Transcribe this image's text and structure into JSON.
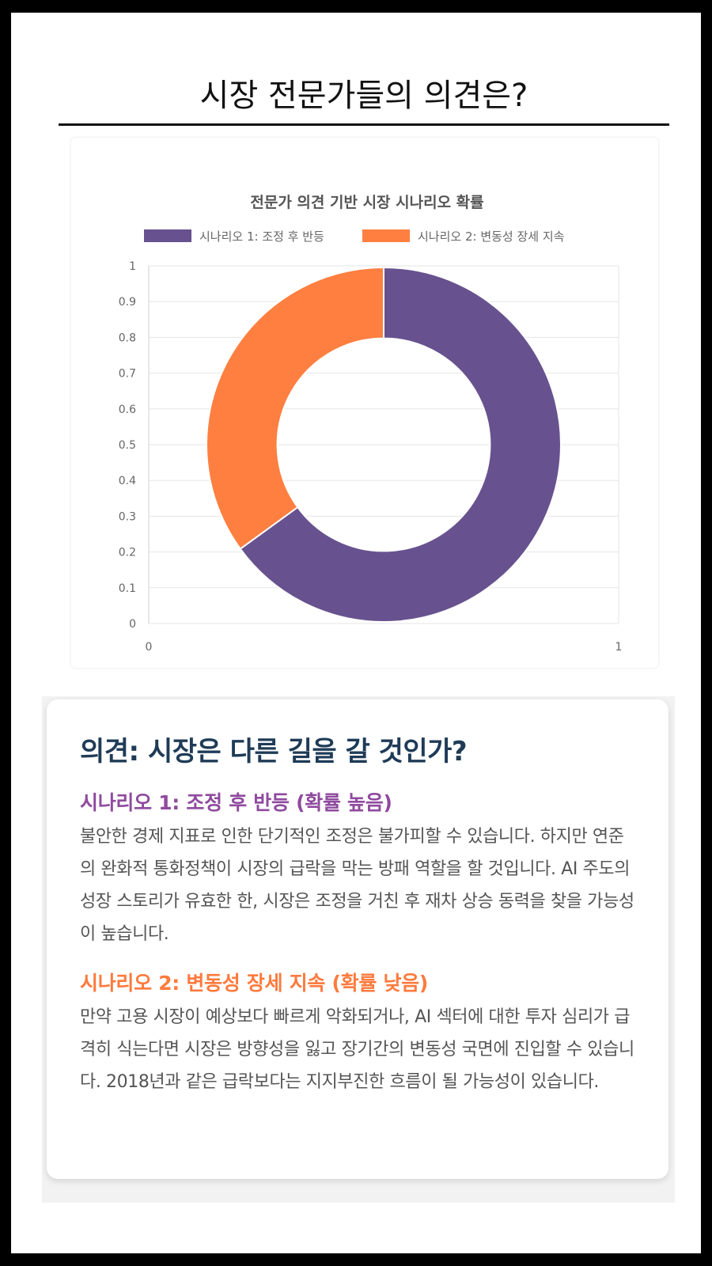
{
  "page": {
    "title": "시장 전문가들의 의견은?"
  },
  "chart_data": {
    "type": "pie",
    "title": "전문가 의견 기반 시장 시나리오 확률",
    "legend_position": "top",
    "series": [
      {
        "name": "시나리오 1: 조정 후 반등",
        "value": 65,
        "color": "#67528f"
      },
      {
        "name": "시나리오 2: 변동성 장세 지속",
        "value": 35,
        "color": "#ff7f40"
      }
    ],
    "donut_inner_ratio": 0.6,
    "x_ticks": [
      "0",
      "1"
    ],
    "y_ticks": [
      "0",
      "0.1",
      "0.2",
      "0.3",
      "0.4",
      "0.5",
      "0.6",
      "0.7",
      "0.8",
      "0.9",
      "1"
    ],
    "xlim": [
      0,
      1
    ],
    "ylim": [
      0,
      1
    ],
    "grid": true
  },
  "opinion": {
    "heading": "의견: 시장은 다른 길을 갈 것인가?",
    "scenario1": {
      "title": "시나리오 1: 조정 후 반등 (확률 높음)",
      "color": "#8f4a9e",
      "body": "불안한 경제 지표로 인한 단기적인 조정은 불가피할 수 있습니다. 하지만 연준의 완화적 통화정책이 시장의 급락을 막는 방패 역할을 할 것입니다. AI 주도의 성장 스토리가 유효한 한, 시장은 조정을 거친 후 재차 상승 동력을 찾을 가능성이 높습니다."
    },
    "scenario2": {
      "title": "시나리오 2: 변동성 장세 지속 (확률 낮음)",
      "color": "#ff7a3d",
      "body": "만약 고용 시장이 예상보다 빠르게 악화되거나, AI 섹터에 대한 투자 심리가 급격히 식는다면 시장은 방향성을 잃고 장기간의 변동성 국면에 진입할 수 있습니다. 2018년과 같은 급락보다는 지지부진한 흐름이 될 가능성이 있습니다."
    }
  }
}
